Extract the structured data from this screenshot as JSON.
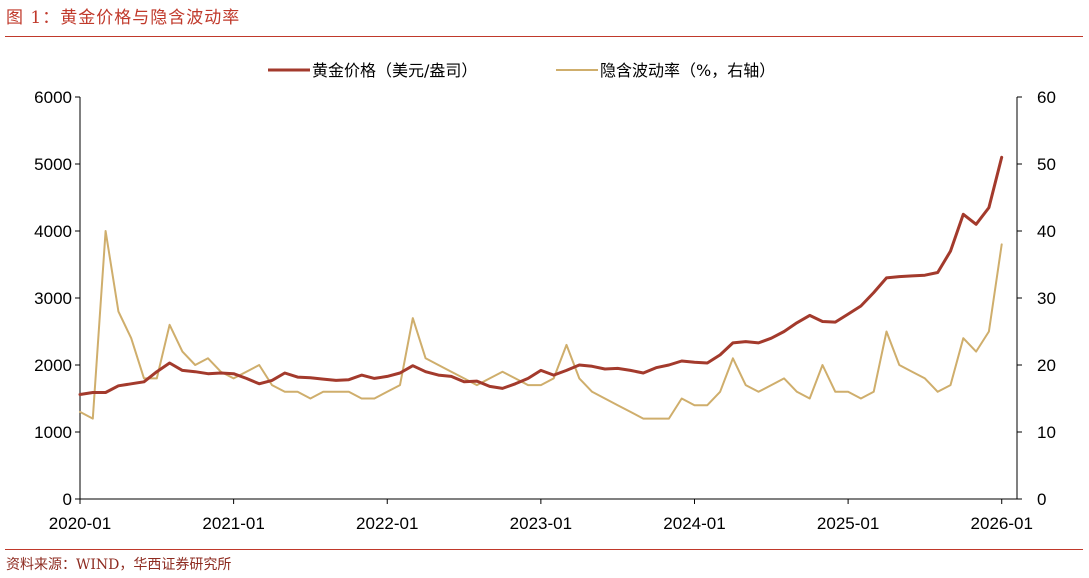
{
  "header": {
    "title": "图 1：黄金价格与隐含波动率"
  },
  "footer": {
    "source": "资料来源：WIND，华西证券研究所"
  },
  "colors": {
    "gold": "#a33a2c",
    "vol": "#cfae6c",
    "accent": "#c0392b"
  },
  "chart_data": {
    "type": "line",
    "title": "",
    "x_range": [
      "2020-01",
      "2026-01"
    ],
    "x_ticks": [
      "2020-01",
      "2021-01",
      "2022-01",
      "2023-01",
      "2024-01",
      "2025-01",
      "2026-01"
    ],
    "y_left": {
      "ticks": [
        "0",
        "1000",
        "2000",
        "3000",
        "4000",
        "5000",
        "6000"
      ],
      "ylim": [
        0,
        6000
      ]
    },
    "y_right": {
      "ticks": [
        "0",
        "10",
        "20",
        "30",
        "40",
        "50",
        "60"
      ],
      "ylim": [
        0,
        60
      ]
    },
    "grid": false,
    "legend_position": "top-center",
    "series": [
      {
        "name": "黄金价格（美元/盎司）",
        "axis": "left",
        "color": "#a33a2c",
        "dates": [
          "2020-01",
          "2020-02",
          "2020-03",
          "2020-04",
          "2020-05",
          "2020-06",
          "2020-07",
          "2020-08",
          "2020-09",
          "2020-10",
          "2020-11",
          "2020-12",
          "2021-01",
          "2021-02",
          "2021-03",
          "2021-04",
          "2021-05",
          "2021-06",
          "2021-07",
          "2021-08",
          "2021-09",
          "2021-10",
          "2021-11",
          "2021-12",
          "2022-01",
          "2022-02",
          "2022-03",
          "2022-04",
          "2022-05",
          "2022-06",
          "2022-07",
          "2022-08",
          "2022-09",
          "2022-10",
          "2022-11",
          "2022-12",
          "2023-01",
          "2023-02",
          "2023-03",
          "2023-04",
          "2023-05",
          "2023-06",
          "2023-07",
          "2023-08",
          "2023-09",
          "2023-10",
          "2023-11",
          "2023-12",
          "2024-01",
          "2024-02",
          "2024-03",
          "2024-04",
          "2024-05",
          "2024-06",
          "2024-07",
          "2024-08",
          "2024-09",
          "2024-10",
          "2024-11",
          "2024-12",
          "2025-01",
          "2025-02",
          "2025-03",
          "2025-04",
          "2025-05",
          "2025-06",
          "2025-07",
          "2025-08",
          "2025-09",
          "2025-10",
          "2025-11",
          "2025-12",
          "2026-01"
        ],
        "values": [
          1560,
          1590,
          1590,
          1690,
          1720,
          1750,
          1900,
          2030,
          1920,
          1900,
          1870,
          1880,
          1870,
          1800,
          1720,
          1770,
          1880,
          1820,
          1810,
          1790,
          1770,
          1780,
          1850,
          1800,
          1830,
          1880,
          1990,
          1900,
          1850,
          1830,
          1750,
          1760,
          1680,
          1650,
          1720,
          1800,
          1920,
          1850,
          1920,
          2000,
          1980,
          1940,
          1950,
          1920,
          1880,
          1960,
          2000,
          2060,
          2040,
          2030,
          2150,
          2330,
          2350,
          2330,
          2400,
          2500,
          2630,
          2740,
          2650,
          2640,
          2760,
          2880,
          3080,
          3300,
          3320,
          3330,
          3340,
          3380,
          3700,
          4250,
          4100,
          4350,
          5100
        ]
      },
      {
        "name": "隐含波动率（%，右轴）",
        "axis": "right",
        "color": "#cfae6c",
        "dates": [
          "2020-01",
          "2020-02",
          "2020-03",
          "2020-04",
          "2020-05",
          "2020-06",
          "2020-07",
          "2020-08",
          "2020-09",
          "2020-10",
          "2020-11",
          "2020-12",
          "2021-01",
          "2021-02",
          "2021-03",
          "2021-04",
          "2021-05",
          "2021-06",
          "2021-07",
          "2021-08",
          "2021-09",
          "2021-10",
          "2021-11",
          "2021-12",
          "2022-01",
          "2022-02",
          "2022-03",
          "2022-04",
          "2022-05",
          "2022-06",
          "2022-07",
          "2022-08",
          "2022-09",
          "2022-10",
          "2022-11",
          "2022-12",
          "2023-01",
          "2023-02",
          "2023-03",
          "2023-04",
          "2023-05",
          "2023-06",
          "2023-07",
          "2023-08",
          "2023-09",
          "2023-10",
          "2023-11",
          "2023-12",
          "2024-01",
          "2024-02",
          "2024-03",
          "2024-04",
          "2024-05",
          "2024-06",
          "2024-07",
          "2024-08",
          "2024-09",
          "2024-10",
          "2024-11",
          "2024-12",
          "2025-01",
          "2025-02",
          "2025-03",
          "2025-04",
          "2025-05",
          "2025-06",
          "2025-07",
          "2025-08",
          "2025-09",
          "2025-10",
          "2025-11",
          "2025-12",
          "2026-01"
        ],
        "values": [
          13,
          12,
          40,
          28,
          24,
          18,
          18,
          26,
          22,
          20,
          21,
          19,
          18,
          19,
          20,
          17,
          16,
          16,
          15,
          16,
          16,
          16,
          15,
          15,
          16,
          17,
          27,
          21,
          20,
          19,
          18,
          17,
          18,
          19,
          18,
          17,
          17,
          18,
          23,
          18,
          16,
          15,
          14,
          13,
          12,
          12,
          12,
          15,
          14,
          14,
          16,
          21,
          17,
          16,
          17,
          18,
          16,
          15,
          20,
          16,
          16,
          15,
          16,
          25,
          20,
          19,
          18,
          16,
          17,
          24,
          22,
          25,
          38
        ]
      }
    ]
  }
}
